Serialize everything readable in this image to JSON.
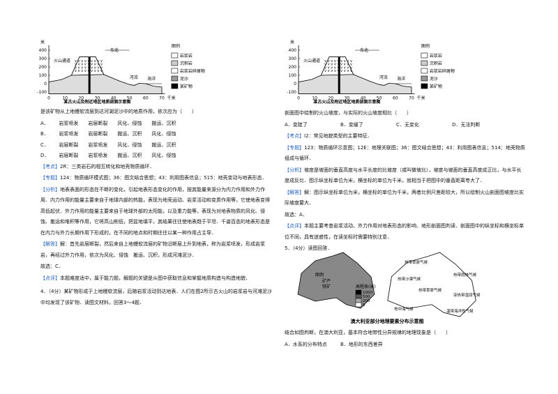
{
  "left": {
    "figure": {
      "y_unit": "米",
      "y_labels": [
        "400",
        "300",
        "200",
        "100",
        "0",
        "-100"
      ],
      "x_labels": [
        "0",
        "10",
        "20",
        "30",
        "40",
        "50",
        "60",
        "70"
      ],
      "x_unit": "千米",
      "direction": "东北",
      "labels": [
        "火山通道",
        "河流",
        "海洋"
      ],
      "legend_title": "图例",
      "legend": [
        "岩浆岩",
        "沉积岩",
        "岩浆岩碎屑物",
        "泥沙",
        "某矿物"
      ],
      "caption": "某古火山及附近地区地质剖面示意图"
    },
    "question": "是该矿物从上地幔软流层到达河湖泥沙中的地质作用，依次应为（　　）",
    "options": [
      [
        "A．",
        "岩浆喷发",
        "岩层断裂",
        "风化、侵蚀",
        "搬运、沉积"
      ],
      [
        "B．",
        "岩浆喷发",
        "岩层断裂",
        "搬运、沉积",
        "风化、侵蚀"
      ],
      [
        "C．",
        "岩层断裂",
        "岩浆喷发",
        "风化、侵蚀",
        "搬运、沉积"
      ],
      [
        "D．",
        "岩层断裂",
        "岩浆喷发",
        "搬运、沉积",
        "风化、侵蚀"
      ]
    ],
    "notes": [
      {
        "tag": "【考点】",
        "text": "2R：三类岩石的相互转化和地壳物质循环．"
      },
      {
        "tag": "【专题】",
        "text": "124：物质循环模式图；36：图文结合思想；43：利用图表信息；515：地壳变动与地表形态．"
      },
      {
        "tag": "【分析】",
        "text": "地表表面的形态在不断的变化，引起地表形态变化的作用，按其能量来源分为内力作用和外力作用．内力作用的能量主要来自于地球内部的热能，表现为地壳运动、岩浆活动和变质作用等，它使地表变得高低起伏．外力作用的能量主要来自于地球外部的太阳能，以及重力能等，表现为对地表物质的风化、侵蚀、搬运和堆积等作用，它将高山削低，把盆地填平，其结果往往使地表趋于平坦．千姿百态的地表形态是在内力与外力长期作用下形成的，在不同的地点和时期往往以某一种作用占主导．"
      },
      {
        "tag": "【解答】",
        "text": "解：首先岩层断裂，然后来自上地幔软流层的矿物沿断层上升到地表，称为岩浆喷发，形成岩浆岩，再经过外力作用，依次为风化、侵蚀　搬运、沉积，形成河滩泥沙．"
      },
      {
        "tag": "",
        "text": "故选：C．"
      },
      {
        "tag": "【点评】",
        "text": "本题难度适中，属于能力题，解题的关键是从图中获取信息和掌握地质构造与构造地貌．"
      }
    ],
    "next": "4．（4分）某矿物形成于上地幔软流层，后随岩浆活动到达地表．人们在图2所示古火山的岩浆岩与河滩泥沙中均发现了该矿物．读图文材料，回答3～4题．"
  },
  "right": {
    "figure": {
      "y_unit": "米",
      "y_labels": [
        "400",
        "300",
        "200",
        "100",
        "0",
        "-100"
      ],
      "x_labels": [
        "0",
        "10",
        "20",
        "30",
        "40",
        "50",
        "60",
        "70"
      ],
      "x_unit": "千米",
      "direction": "东北",
      "labels": [
        "火山通道",
        "河流",
        "海洋"
      ],
      "legend_title": "图例",
      "legend": [
        "岩浆岩",
        "沉积岩",
        "岩浆岩碎屑物",
        "泥沙",
        "某矿物"
      ],
      "caption": "某古火山及附近地区地质剖面示意图"
    },
    "question": "剖面图中绘制的火山坡度，与实际的火山坡度相比（　　）",
    "options": [
      "A．变陡了",
      "B．变缓了",
      "C．无变化",
      "D．无法判断"
    ],
    "notes": [
      {
        "tag": "【考点】",
        "text": "I2：常见地貌类型的主要特征．"
      },
      {
        "tag": "【专题】",
        "text": "123：物质循环示意图；12E：地理关联图；36：图文结合思想；43：利用图表信息；514：地壳物质组成与循环．"
      },
      {
        "tag": "【分析】",
        "text": "坡度是坡面的垂直高度与水平长度的比坡度（或叫做坡比），坡度与坡面的垂直高度成正比，与水平长度成反比．图示纵坐标单位为米，横坐标的单位为千米，就相当于把图中的垂直距离夸大了．"
      },
      {
        "tag": "【解答】",
        "text": "解：图示纵坐标单位为米，横坐标的单位为千米，两者比例尺差距较大，所以绘制火山剖面图坡度比实际坡度要大．"
      },
      {
        "tag": "",
        "text": "故选：A．"
      },
      {
        "tag": "【点评】",
        "text": "本题主要考查岩浆活动、外力作用对地表形态的影响．地形剖面图判读．剖面图中的纵坐标和横坐标单位不同，具有迷惑性，在读坐标时需要特别注意．"
      }
    ],
    "q5": "5．（4分）读图回答．",
    "map": {
      "legend_title": "图例",
      "legend": [
        "矿产",
        "铁矿"
      ],
      "elev_title": "高程表(米)",
      "elev": [
        "1000",
        "500",
        "200",
        "0"
      ],
      "climate": [
        "热带草原气候",
        "热带雨林气候",
        "热带沙漠气候",
        "热带草原气候",
        "亚热带湿润气候",
        "地中海气候",
        "温带海洋性气候"
      ],
      "caption": "澳大利亚部分地理要素分布示意图"
    },
    "question5": "结合如图判断，在澳大利亚，基本符合地带性分异规律的地理现象是（　　）",
    "options5": [
      "A．水系的分布特点",
      "B．地形的东西差异"
    ]
  }
}
